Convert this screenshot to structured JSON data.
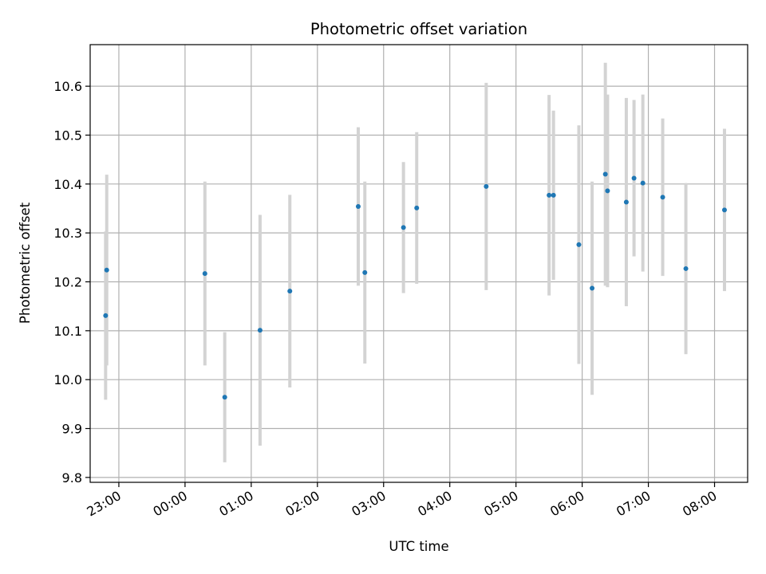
{
  "chart_data": {
    "type": "scatter",
    "title": "Photometric offset variation",
    "xlabel": "UTC time",
    "ylabel": "Photometric offset",
    "grid": true,
    "xlim": [
      "22:34",
      "08:30"
    ],
    "ylim": [
      9.79,
      10.685
    ],
    "xticks": [
      "23:00",
      "00:00",
      "01:00",
      "02:00",
      "03:00",
      "04:00",
      "05:00",
      "06:00",
      "07:00",
      "08:00"
    ],
    "yticks": [
      "9.8",
      "9.9",
      "10.0",
      "10.1",
      "10.2",
      "10.3",
      "10.4",
      "10.5",
      "10.6"
    ],
    "colors": {
      "point": "#1f77b4",
      "errorbar": "#d3d3d3",
      "grid": "#b0b0b0"
    },
    "points": [
      {
        "x": "22:48",
        "y": 10.131,
        "err": 0.172
      },
      {
        "x": "22:49",
        "y": 10.224,
        "err": 0.195
      },
      {
        "x": "00:18",
        "y": 10.217,
        "err": 0.188
      },
      {
        "x": "00:36",
        "y": 9.964,
        "err": 0.133
      },
      {
        "x": "01:08",
        "y": 10.101,
        "err": 0.236
      },
      {
        "x": "01:35",
        "y": 10.181,
        "err": 0.197
      },
      {
        "x": "02:37",
        "y": 10.354,
        "err": 0.162
      },
      {
        "x": "02:43",
        "y": 10.219,
        "err": 0.186
      },
      {
        "x": "03:18",
        "y": 10.311,
        "err": 0.134
      },
      {
        "x": "03:30",
        "y": 10.351,
        "err": 0.155
      },
      {
        "x": "04:33",
        "y": 10.395,
        "err": 0.212
      },
      {
        "x": "05:30",
        "y": 10.377,
        "err": 0.205
      },
      {
        "x": "05:34",
        "y": 10.377,
        "err": 0.173
      },
      {
        "x": "05:57",
        "y": 10.276,
        "err": 0.244
      },
      {
        "x": "06:09",
        "y": 10.187,
        "err": 0.218
      },
      {
        "x": "06:21",
        "y": 10.42,
        "err": 0.228
      },
      {
        "x": "06:23",
        "y": 10.386,
        "err": 0.197
      },
      {
        "x": "06:40",
        "y": 10.363,
        "err": 0.213
      },
      {
        "x": "06:47",
        "y": 10.412,
        "err": 0.16
      },
      {
        "x": "06:55",
        "y": 10.402,
        "err": 0.181
      },
      {
        "x": "07:13",
        "y": 10.373,
        "err": 0.161
      },
      {
        "x": "07:34",
        "y": 10.227,
        "err": 0.175
      },
      {
        "x": "08:09",
        "y": 10.347,
        "err": 0.166
      }
    ]
  }
}
